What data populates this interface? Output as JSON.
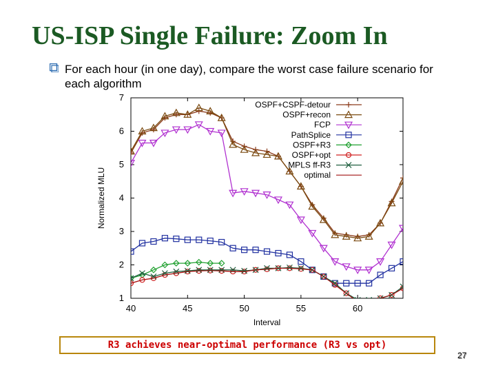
{
  "slide": {
    "title": "US-ISP Single Failure: Zoom In",
    "bullet": "For each hour (in one day), compare the worst case failure scenario for each algorithm",
    "callout": "R3 achieves near-optimal performance (R3 vs opt)",
    "page_number": "27",
    "page_number_shadow": "27",
    "colors": {
      "title": "#1b5a23",
      "callout_text": "#cc0000",
      "callout_border": "#b8860b"
    }
  },
  "chart_data": {
    "type": "line",
    "xlabel": "Interval",
    "ylabel": "Normalized MLU",
    "xlim": [
      40,
      64
    ],
    "ylim": [
      1,
      7
    ],
    "xticks": [
      40,
      45,
      50,
      55,
      60
    ],
    "yticks": [
      1,
      2,
      3,
      4,
      5,
      6,
      7
    ],
    "grid": false,
    "legend_position": "top-right",
    "series": [
      {
        "name": "OSPF+CSPF-detour",
        "color": "#8b3a1a",
        "marker": "plus",
        "x": [
          40,
          41,
          42,
          43,
          44,
          45,
          46,
          47,
          48,
          49,
          50,
          51,
          52,
          53,
          54,
          55,
          56,
          57,
          58,
          59,
          60,
          61,
          62,
          63,
          64
        ],
        "y": [
          5.35,
          5.95,
          6.05,
          6.4,
          6.5,
          6.5,
          6.6,
          6.55,
          6.4,
          5.7,
          5.55,
          5.45,
          5.4,
          5.25,
          4.8,
          4.35,
          3.8,
          3.4,
          2.95,
          2.9,
          2.85,
          2.9,
          3.25,
          3.9,
          4.6
        ]
      },
      {
        "name": "OSPF+recon",
        "color": "#7a4a10",
        "marker": "triangle",
        "x": [
          40,
          41,
          42,
          43,
          44,
          45,
          46,
          47,
          48,
          49,
          50,
          51,
          52,
          53,
          54,
          55,
          56,
          57,
          58,
          59,
          60,
          61,
          62,
          63,
          64
        ],
        "y": [
          5.4,
          6.0,
          6.1,
          6.45,
          6.55,
          6.5,
          6.7,
          6.6,
          6.4,
          5.6,
          5.45,
          5.35,
          5.3,
          5.25,
          4.8,
          4.35,
          3.75,
          3.35,
          2.9,
          2.85,
          2.8,
          2.85,
          3.25,
          3.85,
          4.5
        ]
      },
      {
        "name": "FCP",
        "color": "#b030d0",
        "marker": "inv-triangle",
        "x": [
          40,
          41,
          42,
          43,
          44,
          45,
          46,
          47,
          48,
          49,
          50,
          51,
          52,
          53,
          54,
          55,
          56,
          57,
          58,
          59,
          60,
          61,
          62,
          63,
          64
        ],
        "y": [
          5.05,
          5.65,
          5.65,
          5.95,
          6.05,
          6.05,
          6.2,
          6.0,
          5.95,
          4.15,
          4.2,
          4.15,
          4.1,
          3.95,
          3.8,
          3.35,
          2.95,
          2.5,
          2.1,
          1.95,
          1.85,
          1.85,
          2.1,
          2.6,
          3.1
        ]
      },
      {
        "name": "PathSplice",
        "color": "#2030a0",
        "marker": "square",
        "x": [
          40,
          41,
          42,
          43,
          44,
          45,
          46,
          47,
          48,
          49,
          50,
          51,
          52,
          53,
          54,
          55,
          56,
          57,
          58,
          59,
          60,
          61,
          62,
          63,
          64
        ],
        "y": [
          2.4,
          2.65,
          2.7,
          2.8,
          2.78,
          2.75,
          2.75,
          2.72,
          2.68,
          2.5,
          2.45,
          2.45,
          2.4,
          2.35,
          2.3,
          2.1,
          1.85,
          1.65,
          1.45,
          1.45,
          1.45,
          1.45,
          1.7,
          1.9,
          2.1
        ]
      },
      {
        "name": "OSPF+R3",
        "color": "#20a030",
        "marker": "diamond",
        "x": [
          40,
          41,
          42,
          43,
          44,
          45,
          46,
          47,
          48
        ],
        "y": [
          1.6,
          1.7,
          1.85,
          2.0,
          2.05,
          2.05,
          2.08,
          2.05,
          2.05
        ]
      },
      {
        "name": "OSPF+opt",
        "color": "#d02020",
        "marker": "circle",
        "x": [
          40,
          41,
          42,
          43,
          44,
          45,
          46,
          47,
          48,
          49,
          50,
          51,
          52,
          53,
          54,
          55,
          56,
          57,
          58,
          59,
          60,
          61,
          62,
          63,
          64
        ],
        "y": [
          1.45,
          1.55,
          1.6,
          1.7,
          1.75,
          1.8,
          1.82,
          1.83,
          1.82,
          1.8,
          1.8,
          1.85,
          1.87,
          1.9,
          1.9,
          1.88,
          1.85,
          1.65,
          1.4,
          1.15,
          0.9,
          0.9,
          1.0,
          1.1,
          1.3
        ]
      },
      {
        "name": "MPLS ff-R3",
        "color": "#206040",
        "marker": "cross",
        "x": [
          40,
          41,
          42,
          43,
          44,
          45,
          46,
          47,
          48,
          49,
          50,
          51,
          52,
          53,
          54,
          55,
          56,
          57,
          58,
          59,
          60,
          61,
          62,
          63,
          64
        ],
        "y": [
          1.6,
          1.75,
          1.65,
          1.75,
          1.8,
          1.82,
          1.85,
          1.85,
          1.85,
          1.85,
          1.82,
          1.85,
          1.9,
          1.9,
          1.92,
          1.9,
          1.85,
          1.65,
          1.45,
          1.15,
          0.95,
          0.95,
          1.0,
          1.1,
          1.35
        ]
      },
      {
        "name": "optimal",
        "color": "#a01010",
        "marker": "none",
        "x": [
          40,
          41,
          42,
          43,
          44,
          45,
          46,
          47,
          48,
          49,
          50,
          51,
          52,
          53,
          54,
          55,
          56,
          57,
          58,
          59,
          60,
          61,
          62,
          63,
          64
        ],
        "y": [
          1.45,
          1.55,
          1.6,
          1.7,
          1.75,
          1.8,
          1.82,
          1.83,
          1.82,
          1.8,
          1.8,
          1.85,
          1.87,
          1.9,
          1.9,
          1.88,
          1.85,
          1.65,
          1.4,
          1.15,
          0.9,
          0.9,
          1.0,
          1.1,
          1.3
        ]
      }
    ]
  }
}
